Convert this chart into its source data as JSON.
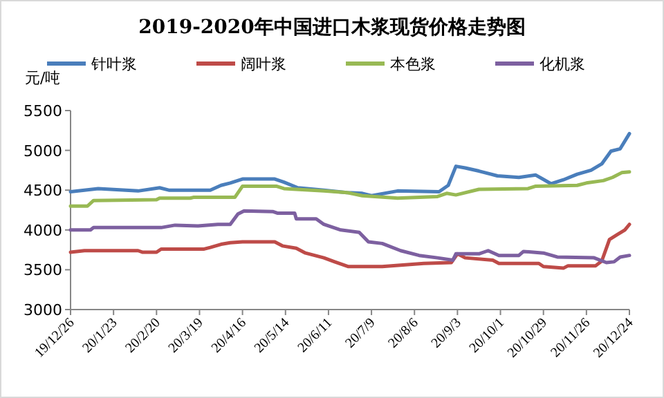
{
  "chart_data": {
    "type": "line",
    "title": "2019-2020年中国进口木浆现货价格走势图",
    "ylabel": "元/吨",
    "legend": "top",
    "xlim": [
      "2019-12-26",
      "2020-12-24"
    ],
    "xticks": [
      {
        "value": "2019-12-26",
        "label": "19/12/26"
      },
      {
        "value": "2020-01-23",
        "label": "20/1/23"
      },
      {
        "value": "2020-02-20",
        "label": "20/2/20"
      },
      {
        "value": "2020-03-19",
        "label": "20/3/19"
      },
      {
        "value": "2020-04-16",
        "label": "20/4/16"
      },
      {
        "value": "2020-05-14",
        "label": "20/5/14"
      },
      {
        "value": "2020-06-11",
        "label": "20/6/11"
      },
      {
        "value": "2020-07-09",
        "label": "20/7/9"
      },
      {
        "value": "2020-08-06",
        "label": "20/8/6"
      },
      {
        "value": "2020-09-03",
        "label": "20/9/3"
      },
      {
        "value": "2020-10-01",
        "label": "20/10/1"
      },
      {
        "value": "2020-10-29",
        "label": "20/10/29"
      },
      {
        "value": "2020-11-26",
        "label": "20/11/26"
      },
      {
        "value": "2020-12-24",
        "label": "20/12/24"
      }
    ],
    "ylim": [
      3000,
      5500
    ],
    "yticks": [
      3000,
      3500,
      4000,
      4500,
      5000,
      5500
    ],
    "series": [
      {
        "name": "针叶浆",
        "color": "#4a7ebb",
        "x": [
          "2019-12-26",
          "2020-01-04",
          "2020-01-13",
          "2020-02-08",
          "2020-02-22",
          "2020-02-28",
          "2020-03-26",
          "2020-04-02",
          "2020-04-08",
          "2020-04-16",
          "2020-05-07",
          "2020-05-13",
          "2020-05-22",
          "2020-06-08",
          "2020-06-23",
          "2020-07-03",
          "2020-07-09",
          "2020-07-26",
          "2020-08-22",
          "2020-08-28",
          "2020-09-02",
          "2020-09-08",
          "2020-09-17",
          "2020-09-29",
          "2020-10-13",
          "2020-10-24",
          "2020-11-03",
          "2020-11-11",
          "2020-11-20",
          "2020-11-29",
          "2020-12-06",
          "2020-12-12",
          "2020-12-18",
          "2020-12-24"
        ],
        "values": [
          4480,
          4500,
          4520,
          4490,
          4530,
          4500,
          4500,
          4560,
          4590,
          4640,
          4640,
          4600,
          4530,
          4500,
          4470,
          4460,
          4430,
          4490,
          4480,
          4560,
          4800,
          4780,
          4740,
          4680,
          4660,
          4690,
          4580,
          4630,
          4700,
          4750,
          4830,
          4990,
          5020,
          5210
        ]
      },
      {
        "name": "阔叶浆",
        "color": "#be4b48",
        "x": [
          "2019-12-26",
          "2020-01-04",
          "2020-02-08",
          "2020-02-11",
          "2020-02-20",
          "2020-02-23",
          "2020-03-22",
          "2020-03-26",
          "2020-04-02",
          "2020-04-08",
          "2020-04-16",
          "2020-05-07",
          "2020-05-12",
          "2020-05-21",
          "2020-05-27",
          "2020-06-08",
          "2020-06-15",
          "2020-06-24",
          "2020-07-16",
          "2020-07-22",
          "2020-08-12",
          "2020-08-30",
          "2020-09-03",
          "2020-09-08",
          "2020-09-26",
          "2020-09-30",
          "2020-10-26",
          "2020-10-29",
          "2020-11-11",
          "2020-11-14",
          "2020-12-02",
          "2020-12-06",
          "2020-12-11",
          "2020-12-16",
          "2020-12-21",
          "2020-12-24"
        ],
        "values": [
          3720,
          3740,
          3740,
          3720,
          3720,
          3760,
          3760,
          3780,
          3820,
          3840,
          3850,
          3850,
          3800,
          3770,
          3710,
          3650,
          3600,
          3540,
          3540,
          3550,
          3580,
          3590,
          3700,
          3650,
          3620,
          3580,
          3580,
          3540,
          3520,
          3550,
          3550,
          3610,
          3880,
          3940,
          4000,
          4070
        ]
      },
      {
        "name": "本色浆",
        "color": "#98b954",
        "x": [
          "2019-12-26",
          "2020-01-06",
          "2020-01-10",
          "2020-02-20",
          "2020-02-22",
          "2020-03-13",
          "2020-03-15",
          "2020-04-11",
          "2020-04-16",
          "2020-05-08",
          "2020-05-13",
          "2020-06-08",
          "2020-06-23",
          "2020-07-03",
          "2020-07-26",
          "2020-08-21",
          "2020-08-27",
          "2020-09-02",
          "2020-09-17",
          "2020-10-19",
          "2020-10-24",
          "2020-11-20",
          "2020-11-26",
          "2020-12-07",
          "2020-12-13",
          "2020-12-19",
          "2020-12-24"
        ],
        "values": [
          4300,
          4300,
          4370,
          4380,
          4400,
          4400,
          4410,
          4410,
          4550,
          4550,
          4520,
          4490,
          4470,
          4430,
          4400,
          4420,
          4460,
          4440,
          4510,
          4520,
          4550,
          4560,
          4590,
          4620,
          4660,
          4720,
          4730
        ]
      },
      {
        "name": "化机浆",
        "color": "#7d60a0",
        "x": [
          "2019-12-26",
          "2020-01-08",
          "2020-01-10",
          "2020-02-23",
          "2020-03-03",
          "2020-03-18",
          "2020-03-31",
          "2020-04-08",
          "2020-04-13",
          "2020-04-17",
          "2020-05-06",
          "2020-05-09",
          "2020-05-20",
          "2020-05-21",
          "2020-06-03",
          "2020-06-08",
          "2020-06-19",
          "2020-07-01",
          "2020-07-07",
          "2020-07-16",
          "2020-07-28",
          "2020-08-09",
          "2020-08-21",
          "2020-08-31",
          "2020-09-02",
          "2020-09-17",
          "2020-09-23",
          "2020-09-30",
          "2020-10-13",
          "2020-10-16",
          "2020-10-29",
          "2020-11-07",
          "2020-12-01",
          "2020-12-09",
          "2020-12-14",
          "2020-12-18",
          "2020-12-24"
        ],
        "values": [
          4000,
          4000,
          4030,
          4030,
          4060,
          4050,
          4070,
          4070,
          4200,
          4240,
          4230,
          4210,
          4210,
          4140,
          4140,
          4070,
          4000,
          3970,
          3850,
          3830,
          3740,
          3680,
          3650,
          3620,
          3700,
          3700,
          3740,
          3680,
          3680,
          3730,
          3710,
          3660,
          3650,
          3590,
          3600,
          3660,
          3680
        ]
      }
    ]
  }
}
